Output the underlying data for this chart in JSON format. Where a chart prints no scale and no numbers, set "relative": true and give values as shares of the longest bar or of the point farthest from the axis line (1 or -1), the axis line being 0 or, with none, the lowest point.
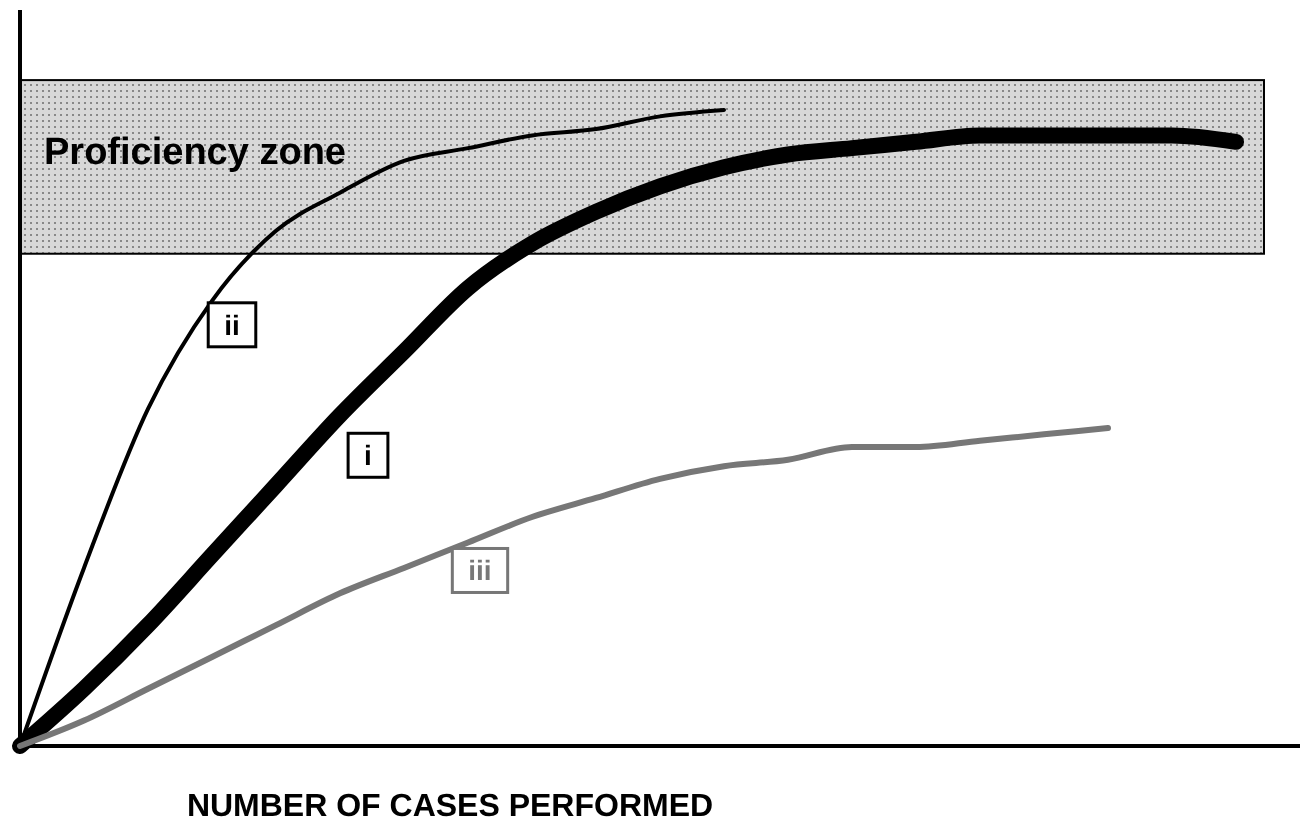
{
  "chart_data": {
    "type": "line",
    "relative": true,
    "xlabel": "NUMBER OF CASES PERFORMED",
    "categories": [
      null,
      null,
      null,
      null,
      null,
      null,
      null,
      null,
      null,
      null,
      null,
      null,
      null,
      null,
      null,
      null,
      null,
      null,
      null,
      null
    ],
    "series": [
      {
        "name": "i",
        "color": "#000000",
        "values": [
          0,
          0.09,
          0.19,
          0.3,
          0.41,
          0.52,
          0.62,
          0.72,
          0.79,
          0.84,
          0.88,
          0.91,
          0.93,
          0.94,
          0.95,
          0.96,
          0.96,
          0.96,
          0.96,
          0.95
        ]
      },
      {
        "name": "ii",
        "color": "#000000",
        "values": [
          0,
          0.28,
          0.53,
          0.7,
          0.81,
          0.87,
          0.92,
          0.94,
          0.96,
          0.97,
          0.99,
          1.0,
          null,
          null,
          null,
          null,
          null,
          null,
          null,
          null
        ]
      },
      {
        "name": "iii",
        "color": "#777777",
        "values": [
          0,
          0.04,
          0.09,
          0.14,
          0.19,
          0.24,
          0.28,
          0.32,
          0.36,
          0.39,
          0.42,
          0.44,
          0.45,
          0.47,
          0.47,
          0.48,
          0.49,
          0.5,
          null,
          null
        ]
      }
    ],
    "bands": [
      {
        "axis": "y",
        "from": 0.774,
        "to": 1.047,
        "label": "Proficiency zone",
        "color": "#d8d8d8"
      }
    ]
  }
}
